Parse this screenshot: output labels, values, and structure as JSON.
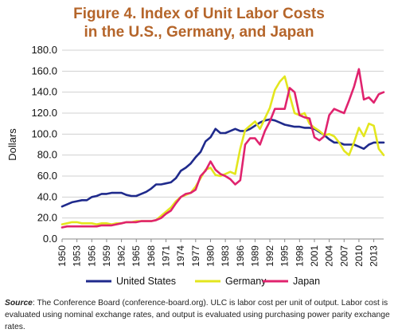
{
  "title_line1": "Figure 4. Index of Unit Labor Costs",
  "title_line2": "in the U.S., Germany, and Japan",
  "source_label": "Source",
  "source_text": ": The Conference Board (conference-board.org). ULC is labor cost per unit of output.  Labor cost is evaluated using nominal exchange rates, and output is evaluated using purchasing power parity exchange rates.",
  "colors": {
    "United States": "#1f2a8c",
    "Germany": "#e3e61e",
    "Japan": "#e0236e"
  },
  "chart_data": {
    "type": "line",
    "title": "Figure 4. Index of Unit Labor Costs in the U.S., Germany, and Japan",
    "xlabel": "",
    "ylabel": "Dollars",
    "ylim": [
      0,
      180
    ],
    "yticks": [
      0,
      20,
      40,
      60,
      80,
      100,
      120,
      140,
      160,
      180
    ],
    "ytick_labels": [
      "0.0",
      "20.0",
      "40.0",
      "60.0",
      "80.0",
      "100.0",
      "120.0",
      "140.0",
      "160.0",
      "180.0"
    ],
    "xlim": [
      1950,
      2015
    ],
    "xticks": [
      1950,
      1953,
      1956,
      1959,
      1962,
      1965,
      1968,
      1971,
      1974,
      1977,
      1980,
      1983,
      1986,
      1989,
      1992,
      1995,
      1998,
      2001,
      2004,
      2007,
      2010,
      2013
    ],
    "grid": "horizontal",
    "legend": "bottom",
    "series": [
      {
        "name": "United States",
        "points": [
          [
            1950,
            31
          ],
          [
            1951,
            33
          ],
          [
            1952,
            35
          ],
          [
            1953,
            36
          ],
          [
            1954,
            37
          ],
          [
            1955,
            37
          ],
          [
            1956,
            40
          ],
          [
            1957,
            41
          ],
          [
            1958,
            43
          ],
          [
            1959,
            43
          ],
          [
            1960,
            44
          ],
          [
            1961,
            44
          ],
          [
            1962,
            44
          ],
          [
            1963,
            42
          ],
          [
            1964,
            41
          ],
          [
            1965,
            41
          ],
          [
            1966,
            43
          ],
          [
            1967,
            45
          ],
          [
            1968,
            48
          ],
          [
            1969,
            52
          ],
          [
            1970,
            52
          ],
          [
            1971,
            53
          ],
          [
            1972,
            54
          ],
          [
            1973,
            58
          ],
          [
            1974,
            65
          ],
          [
            1975,
            68
          ],
          [
            1976,
            72
          ],
          [
            1977,
            78
          ],
          [
            1978,
            83
          ],
          [
            1979,
            93
          ],
          [
            1980,
            97
          ],
          [
            1981,
            105
          ],
          [
            1982,
            101
          ],
          [
            1983,
            101
          ],
          [
            1984,
            103
          ],
          [
            1985,
            105
          ],
          [
            1986,
            103
          ],
          [
            1987,
            103
          ],
          [
            1988,
            105
          ],
          [
            1989,
            108
          ],
          [
            1990,
            111
          ],
          [
            1991,
            113
          ],
          [
            1992,
            114
          ],
          [
            1993,
            113
          ],
          [
            1994,
            111
          ],
          [
            1995,
            109
          ],
          [
            1996,
            108
          ],
          [
            1997,
            107
          ],
          [
            1998,
            107
          ],
          [
            1999,
            106
          ],
          [
            2000,
            106
          ],
          [
            2001,
            105
          ],
          [
            2002,
            102
          ],
          [
            2003,
            99
          ],
          [
            2004,
            95
          ],
          [
            2005,
            92
          ],
          [
            2006,
            92
          ],
          [
            2007,
            90
          ],
          [
            2008,
            90
          ],
          [
            2009,
            90
          ],
          [
            2010,
            88
          ],
          [
            2011,
            86
          ],
          [
            2012,
            90
          ],
          [
            2013,
            92
          ],
          [
            2014,
            92
          ],
          [
            2015,
            92
          ]
        ]
      },
      {
        "name": "Germany",
        "points": [
          [
            1950,
            14
          ],
          [
            1951,
            15
          ],
          [
            1952,
            16
          ],
          [
            1953,
            16
          ],
          [
            1954,
            15
          ],
          [
            1955,
            15
          ],
          [
            1956,
            15
          ],
          [
            1957,
            14
          ],
          [
            1958,
            15
          ],
          [
            1959,
            15
          ],
          [
            1960,
            14
          ],
          [
            1961,
            15
          ],
          [
            1962,
            15
          ],
          [
            1963,
            16
          ],
          [
            1964,
            16
          ],
          [
            1965,
            17
          ],
          [
            1966,
            17
          ],
          [
            1967,
            17
          ],
          [
            1968,
            17
          ],
          [
            1969,
            18
          ],
          [
            1970,
            22
          ],
          [
            1971,
            26
          ],
          [
            1972,
            30
          ],
          [
            1973,
            36
          ],
          [
            1974,
            40
          ],
          [
            1975,
            42
          ],
          [
            1976,
            44
          ],
          [
            1977,
            50
          ],
          [
            1978,
            58
          ],
          [
            1979,
            66
          ],
          [
            1980,
            68
          ],
          [
            1981,
            61
          ],
          [
            1982,
            60
          ],
          [
            1983,
            62
          ],
          [
            1984,
            64
          ],
          [
            1985,
            62
          ],
          [
            1986,
            86
          ],
          [
            1987,
            104
          ],
          [
            1988,
            108
          ],
          [
            1989,
            112
          ],
          [
            1990,
            105
          ],
          [
            1991,
            115
          ],
          [
            1992,
            125
          ],
          [
            1993,
            142
          ],
          [
            1994,
            150
          ],
          [
            1995,
            155
          ],
          [
            1996,
            137
          ],
          [
            1997,
            120
          ],
          [
            1998,
            118
          ],
          [
            1999,
            120
          ],
          [
            2000,
            110
          ],
          [
            2001,
            106
          ],
          [
            2002,
            103
          ],
          [
            2003,
            99
          ],
          [
            2004,
            100
          ],
          [
            2005,
            98
          ],
          [
            2006,
            92
          ],
          [
            2007,
            84
          ],
          [
            2008,
            80
          ],
          [
            2009,
            92
          ],
          [
            2010,
            106
          ],
          [
            2011,
            98
          ],
          [
            2012,
            110
          ],
          [
            2013,
            108
          ],
          [
            2014,
            86
          ],
          [
            2015,
            80
          ]
        ]
      },
      {
        "name": "Japan",
        "points": [
          [
            1950,
            11
          ],
          [
            1951,
            12
          ],
          [
            1952,
            12
          ],
          [
            1953,
            12
          ],
          [
            1954,
            12
          ],
          [
            1955,
            12
          ],
          [
            1956,
            12
          ],
          [
            1957,
            12
          ],
          [
            1958,
            13
          ],
          [
            1959,
            13
          ],
          [
            1960,
            13
          ],
          [
            1961,
            14
          ],
          [
            1962,
            15
          ],
          [
            1963,
            16
          ],
          [
            1964,
            16
          ],
          [
            1965,
            16
          ],
          [
            1966,
            17
          ],
          [
            1967,
            17
          ],
          [
            1968,
            17
          ],
          [
            1969,
            18
          ],
          [
            1970,
            20
          ],
          [
            1971,
            24
          ],
          [
            1972,
            27
          ],
          [
            1973,
            34
          ],
          [
            1974,
            40
          ],
          [
            1975,
            43
          ],
          [
            1976,
            44
          ],
          [
            1977,
            47
          ],
          [
            1978,
            60
          ],
          [
            1979,
            65
          ],
          [
            1980,
            74
          ],
          [
            1981,
            66
          ],
          [
            1982,
            62
          ],
          [
            1983,
            60
          ],
          [
            1984,
            57
          ],
          [
            1985,
            52
          ],
          [
            1986,
            56
          ],
          [
            1987,
            90
          ],
          [
            1988,
            96
          ],
          [
            1989,
            96
          ],
          [
            1990,
            90
          ],
          [
            1991,
            103
          ],
          [
            1992,
            112
          ],
          [
            1993,
            124
          ],
          [
            1994,
            124
          ],
          [
            1995,
            124
          ],
          [
            1996,
            144
          ],
          [
            1997,
            140
          ],
          [
            1998,
            118
          ],
          [
            1999,
            116
          ],
          [
            2000,
            115
          ],
          [
            2001,
            97
          ],
          [
            2002,
            94
          ],
          [
            2003,
            98
          ],
          [
            2004,
            118
          ],
          [
            2005,
            124
          ],
          [
            2006,
            122
          ],
          [
            2007,
            120
          ],
          [
            2008,
            132
          ],
          [
            2009,
            145
          ],
          [
            2010,
            162
          ],
          [
            2011,
            133
          ],
          [
            2012,
            135
          ],
          [
            2013,
            130
          ],
          [
            2014,
            138
          ],
          [
            2015,
            140
          ]
        ]
      }
    ]
  }
}
